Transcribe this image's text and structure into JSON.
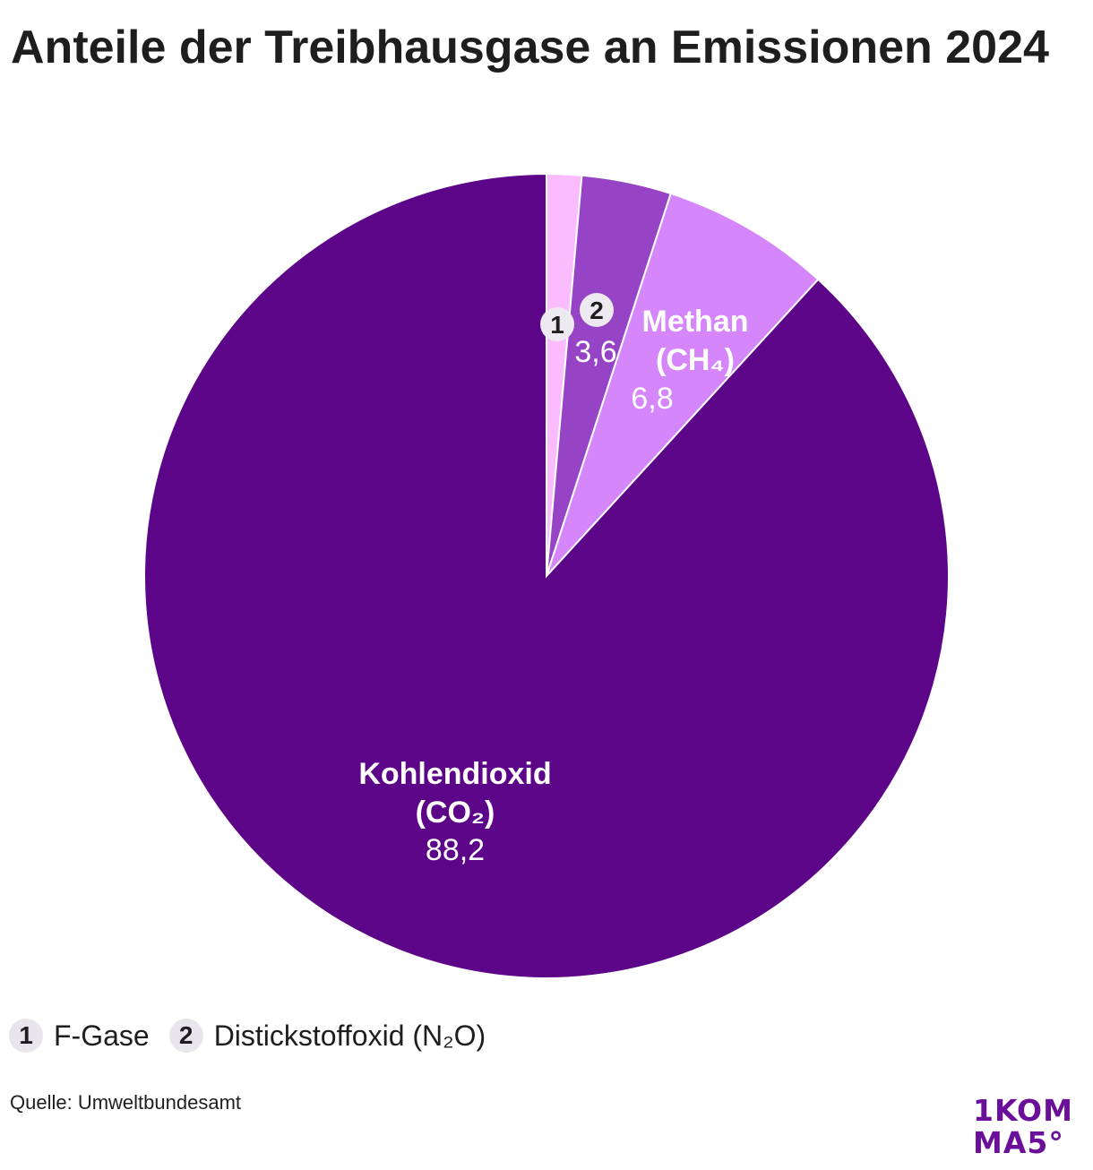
{
  "chart_data": {
    "type": "pie",
    "title": "Anteile der Treibhausgase an Emissionen 2024",
    "slices": [
      {
        "key": "1",
        "name": "F-Gase",
        "value": 1.4,
        "color": "#fbbcfd",
        "label_text": "",
        "value_text": "",
        "marker": "1"
      },
      {
        "key": "2",
        "name": "Distickstoffoxid (N₂O)",
        "value": 3.6,
        "color": "#9643c5",
        "label_text": "",
        "value_text": "3,6",
        "marker": "2"
      },
      {
        "key": "ch4",
        "name": "Methan (CH₄)",
        "value": 6.8,
        "color": "#d686fb",
        "label_text": [
          "Methan",
          "(CH₄)"
        ],
        "value_text": "6,8",
        "marker": ""
      },
      {
        "key": "co2",
        "name": "Kohlendioxid (CO₂)",
        "value": 88.2,
        "color": "#5c0589",
        "label_text": [
          "Kohlendioxid",
          "(CO₂)"
        ],
        "value_text": "88,2",
        "marker": ""
      }
    ],
    "legend": [
      {
        "marker": "1",
        "text": "F-Gase"
      },
      {
        "marker": "2",
        "text": "Distickstoffoxid (N₂O)"
      }
    ],
    "legend_placement": "bottom-left"
  },
  "source": "Quelle: Umweltbundesamt",
  "logo": {
    "line1": "1KOM",
    "line2": "MA5°",
    "color": "#6a0f9a"
  }
}
